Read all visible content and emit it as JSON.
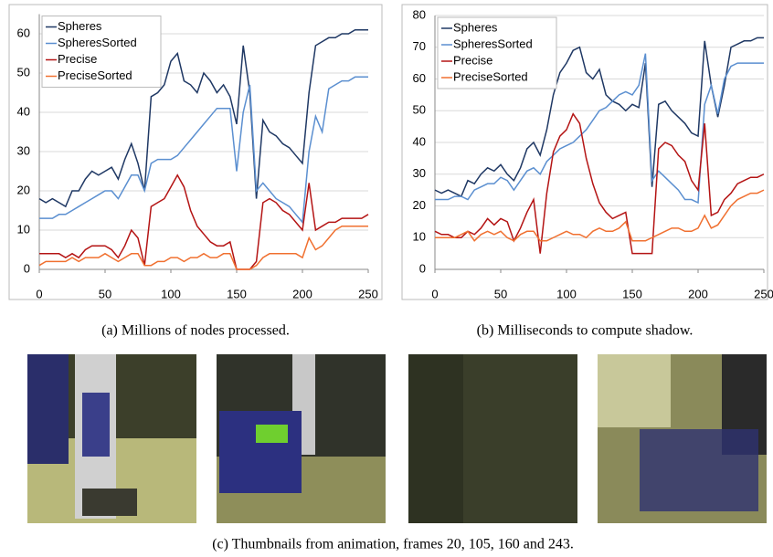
{
  "chart_data": [
    {
      "type": "line",
      "legend": "top-left",
      "grid": true,
      "x": [
        0,
        5,
        10,
        15,
        20,
        25,
        30,
        35,
        40,
        45,
        50,
        55,
        60,
        65,
        70,
        75,
        80,
        85,
        90,
        95,
        100,
        105,
        110,
        115,
        120,
        125,
        130,
        135,
        140,
        145,
        150,
        155,
        160,
        165,
        170,
        175,
        180,
        185,
        190,
        195,
        200,
        205,
        210,
        215,
        220,
        225,
        230,
        235,
        240,
        245,
        250
      ],
      "xlim": [
        0,
        250
      ],
      "xticks": [
        0,
        50,
        100,
        150,
        200,
        250
      ],
      "ylim": [
        0,
        65
      ],
      "yticks": [
        0,
        10,
        20,
        30,
        40,
        50,
        60
      ],
      "series": [
        {
          "name": "Spheres",
          "color": "#1f3864",
          "values": [
            18,
            17,
            18,
            17,
            16,
            20,
            20,
            23,
            25,
            24,
            25,
            26,
            23,
            28,
            32,
            27,
            20,
            44,
            45,
            47,
            53,
            55,
            48,
            47,
            45,
            50,
            48,
            45,
            47,
            44,
            37,
            57,
            45,
            18,
            38,
            35,
            34,
            32,
            31,
            29,
            27,
            45,
            57,
            58,
            59,
            59,
            60,
            60,
            61,
            61,
            61
          ]
        },
        {
          "name": "SpheresSorted",
          "color": "#5b8fd0",
          "values": [
            13,
            13,
            13,
            14,
            14,
            15,
            16,
            17,
            18,
            19,
            20,
            20,
            18,
            21,
            24,
            24,
            20,
            27,
            28,
            28,
            28,
            29,
            31,
            33,
            35,
            37,
            39,
            41,
            41,
            41,
            25,
            40,
            47,
            20,
            22,
            20,
            18,
            17,
            16,
            14,
            12,
            30,
            39,
            35,
            46,
            47,
            48,
            48,
            49,
            49,
            49
          ]
        },
        {
          "name": "Precise",
          "color": "#b41414",
          "values": [
            4,
            4,
            4,
            4,
            3,
            4,
            3,
            5,
            6,
            6,
            6,
            5,
            3,
            6,
            10,
            8,
            1,
            16,
            17,
            18,
            21,
            24,
            21,
            15,
            11,
            9,
            7,
            6,
            6,
            7,
            0,
            0,
            0,
            2,
            17,
            18,
            17,
            15,
            14,
            12,
            10,
            22,
            10,
            11,
            12,
            12,
            13,
            13,
            13,
            13,
            14
          ]
        },
        {
          "name": "PreciseSorted",
          "color": "#f07030",
          "values": [
            1,
            2,
            2,
            2,
            2,
            3,
            2,
            3,
            3,
            3,
            4,
            3,
            2,
            3,
            4,
            4,
            1,
            1,
            2,
            2,
            3,
            3,
            2,
            3,
            3,
            4,
            3,
            3,
            4,
            4,
            0,
            0,
            0,
            1,
            3,
            4,
            4,
            4,
            4,
            4,
            3,
            8,
            5,
            6,
            8,
            10,
            11,
            11,
            11,
            11,
            11
          ]
        }
      ]
    },
    {
      "type": "line",
      "legend": "top-left",
      "grid": true,
      "x": [
        0,
        5,
        10,
        15,
        20,
        25,
        30,
        35,
        40,
        45,
        50,
        55,
        60,
        65,
        70,
        75,
        80,
        85,
        90,
        95,
        100,
        105,
        110,
        115,
        120,
        125,
        130,
        135,
        140,
        145,
        150,
        155,
        160,
        165,
        170,
        175,
        180,
        185,
        190,
        195,
        200,
        205,
        210,
        215,
        220,
        225,
        230,
        235,
        240,
        245,
        250
      ],
      "xlim": [
        0,
        250
      ],
      "xticks": [
        0,
        50,
        100,
        150,
        200,
        250
      ],
      "ylim": [
        0,
        80
      ],
      "yticks": [
        0,
        10,
        20,
        30,
        40,
        50,
        60,
        70,
        80
      ],
      "series": [
        {
          "name": "Spheres",
          "color": "#1f3864",
          "values": [
            25,
            24,
            25,
            24,
            23,
            28,
            27,
            30,
            32,
            31,
            33,
            30,
            28,
            32,
            38,
            40,
            36,
            44,
            55,
            62,
            65,
            69,
            70,
            62,
            60,
            63,
            55,
            53,
            52,
            50,
            52,
            51,
            65,
            26,
            52,
            53,
            50,
            48,
            46,
            43,
            42,
            72,
            58,
            48,
            58,
            70,
            71,
            72,
            72,
            73,
            73
          ]
        },
        {
          "name": "SpheresSorted",
          "color": "#5b8fd0",
          "values": [
            22,
            22,
            22,
            23,
            23,
            22,
            25,
            26,
            27,
            27,
            29,
            28,
            25,
            28,
            31,
            32,
            30,
            34,
            36,
            38,
            39,
            40,
            42,
            44,
            47,
            50,
            51,
            53,
            55,
            56,
            55,
            58,
            68,
            28,
            31,
            29,
            27,
            25,
            22,
            22,
            21,
            52,
            58,
            49,
            60,
            64,
            65,
            65,
            65,
            65,
            65
          ]
        },
        {
          "name": "Precise",
          "color": "#b41414",
          "values": [
            12,
            11,
            11,
            10,
            10,
            12,
            11,
            13,
            16,
            14,
            16,
            15,
            9,
            13,
            18,
            22,
            5,
            24,
            37,
            42,
            44,
            49,
            46,
            35,
            27,
            21,
            18,
            16,
            17,
            18,
            5,
            5,
            5,
            5,
            38,
            40,
            39,
            36,
            34,
            28,
            25,
            46,
            17,
            18,
            22,
            24,
            27,
            28,
            29,
            29,
            30
          ]
        },
        {
          "name": "PreciseSorted",
          "color": "#f07030",
          "values": [
            10,
            10,
            10,
            10,
            11,
            12,
            9,
            11,
            12,
            11,
            12,
            10,
            9,
            11,
            12,
            12,
            9,
            9,
            10,
            11,
            12,
            11,
            11,
            10,
            12,
            13,
            12,
            12,
            13,
            15,
            9,
            9,
            9,
            10,
            11,
            12,
            13,
            13,
            12,
            12,
            13,
            17,
            13,
            14,
            17,
            20,
            22,
            23,
            24,
            24,
            25
          ]
        }
      ]
    }
  ],
  "captions": [
    "(a) Millions of nodes processed.",
    "(b) Milliseconds to compute shadow.",
    "(c) Thumbnails from animation, frames 20, 105, 160 and 243."
  ]
}
